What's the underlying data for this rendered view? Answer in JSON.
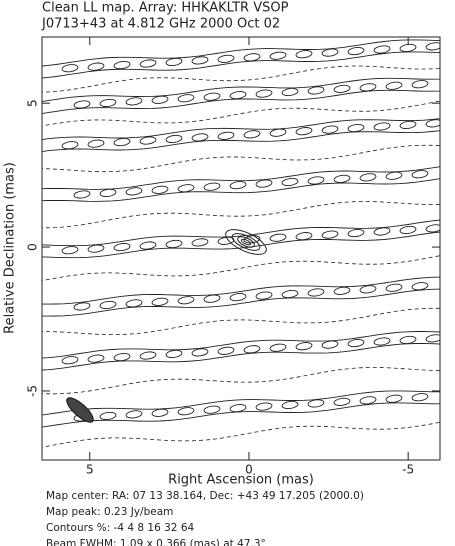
{
  "chart_data": {
    "type": "contour",
    "title": "Clean LL map.  Array:  HHKAKLTR VSOP",
    "subtitle": "J0713+43 at 4.812 GHz 2000 Oct 02",
    "x_label": "Right Ascension  (mas)",
    "y_label": "Relative Declination  (mas)",
    "xlim": [
      6.5,
      -6
    ],
    "ylim": [
      -7.4,
      7.3
    ],
    "xticks": [
      5,
      0,
      -5
    ],
    "yticks": [
      -5,
      0,
      5
    ],
    "annotations": [
      "Map center:  RA: 07 13 38.164,  Dec: +43 49 17.205 (2000.0)",
      "Map peak: 0.23 Jy/beam",
      "Contours %: -4 4 8 16 32 64",
      "Beam FWHM: 1.09 x 0.366 (mas) at 47.3°"
    ]
  }
}
